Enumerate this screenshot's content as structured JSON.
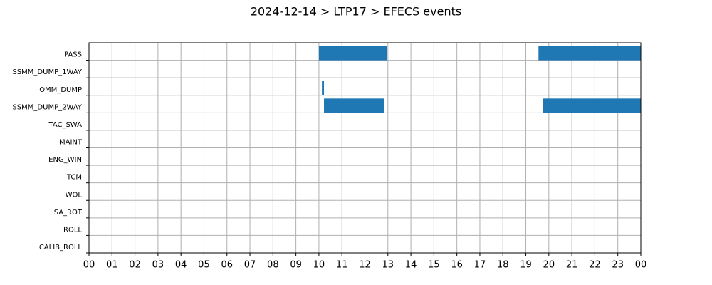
{
  "chart_data": {
    "type": "timeline",
    "title": "2024-12-14 > LTP17 > EFECS events",
    "categories": [
      "PASS",
      "SSMM_DUMP_1WAY",
      "OMM_DUMP",
      "SSMM_DUMP_2WAY",
      "TAC_SWA",
      "MAINT",
      "ENG_WIN",
      "TCM",
      "WOL",
      "SA_ROT",
      "ROLL",
      "CALIB_ROLL"
    ],
    "events": [
      {
        "category": "PASS",
        "start": 10.0,
        "end": 12.95
      },
      {
        "category": "PASS",
        "start": 19.55,
        "end": 24
      },
      {
        "category": "OMM_DUMP",
        "start": 10.13,
        "end": 10.22
      },
      {
        "category": "SSMM_DUMP_2WAY",
        "start": 10.22,
        "end": 12.85
      },
      {
        "category": "SSMM_DUMP_2WAY",
        "start": 19.73,
        "end": 24
      }
    ],
    "color": "#1f77b4",
    "xlim": [
      0,
      24
    ],
    "xticks": [
      {
        "value": 0,
        "label": "00"
      },
      {
        "value": 1,
        "label": "01"
      },
      {
        "value": 2,
        "label": "02"
      },
      {
        "value": 3,
        "label": "03"
      },
      {
        "value": 4,
        "label": "04"
      },
      {
        "value": 5,
        "label": "05"
      },
      {
        "value": 6,
        "label": "06"
      },
      {
        "value": 7,
        "label": "07"
      },
      {
        "value": 8,
        "label": "08"
      },
      {
        "value": 9,
        "label": "09"
      },
      {
        "value": 10,
        "label": "10"
      },
      {
        "value": 11,
        "label": "11"
      },
      {
        "value": 12,
        "label": "12"
      },
      {
        "value": 13,
        "label": "13"
      },
      {
        "value": 14,
        "label": "14"
      },
      {
        "value": 15,
        "label": "15"
      },
      {
        "value": 16,
        "label": "16"
      },
      {
        "value": 17,
        "label": "17"
      },
      {
        "value": 18,
        "label": "18"
      },
      {
        "value": 19,
        "label": "19"
      },
      {
        "value": 20,
        "label": "20"
      },
      {
        "value": 21,
        "label": "21"
      },
      {
        "value": 22,
        "label": "22"
      },
      {
        "value": 23,
        "label": "23"
      },
      {
        "value": 24,
        "label": "00"
      }
    ],
    "grid": true
  }
}
